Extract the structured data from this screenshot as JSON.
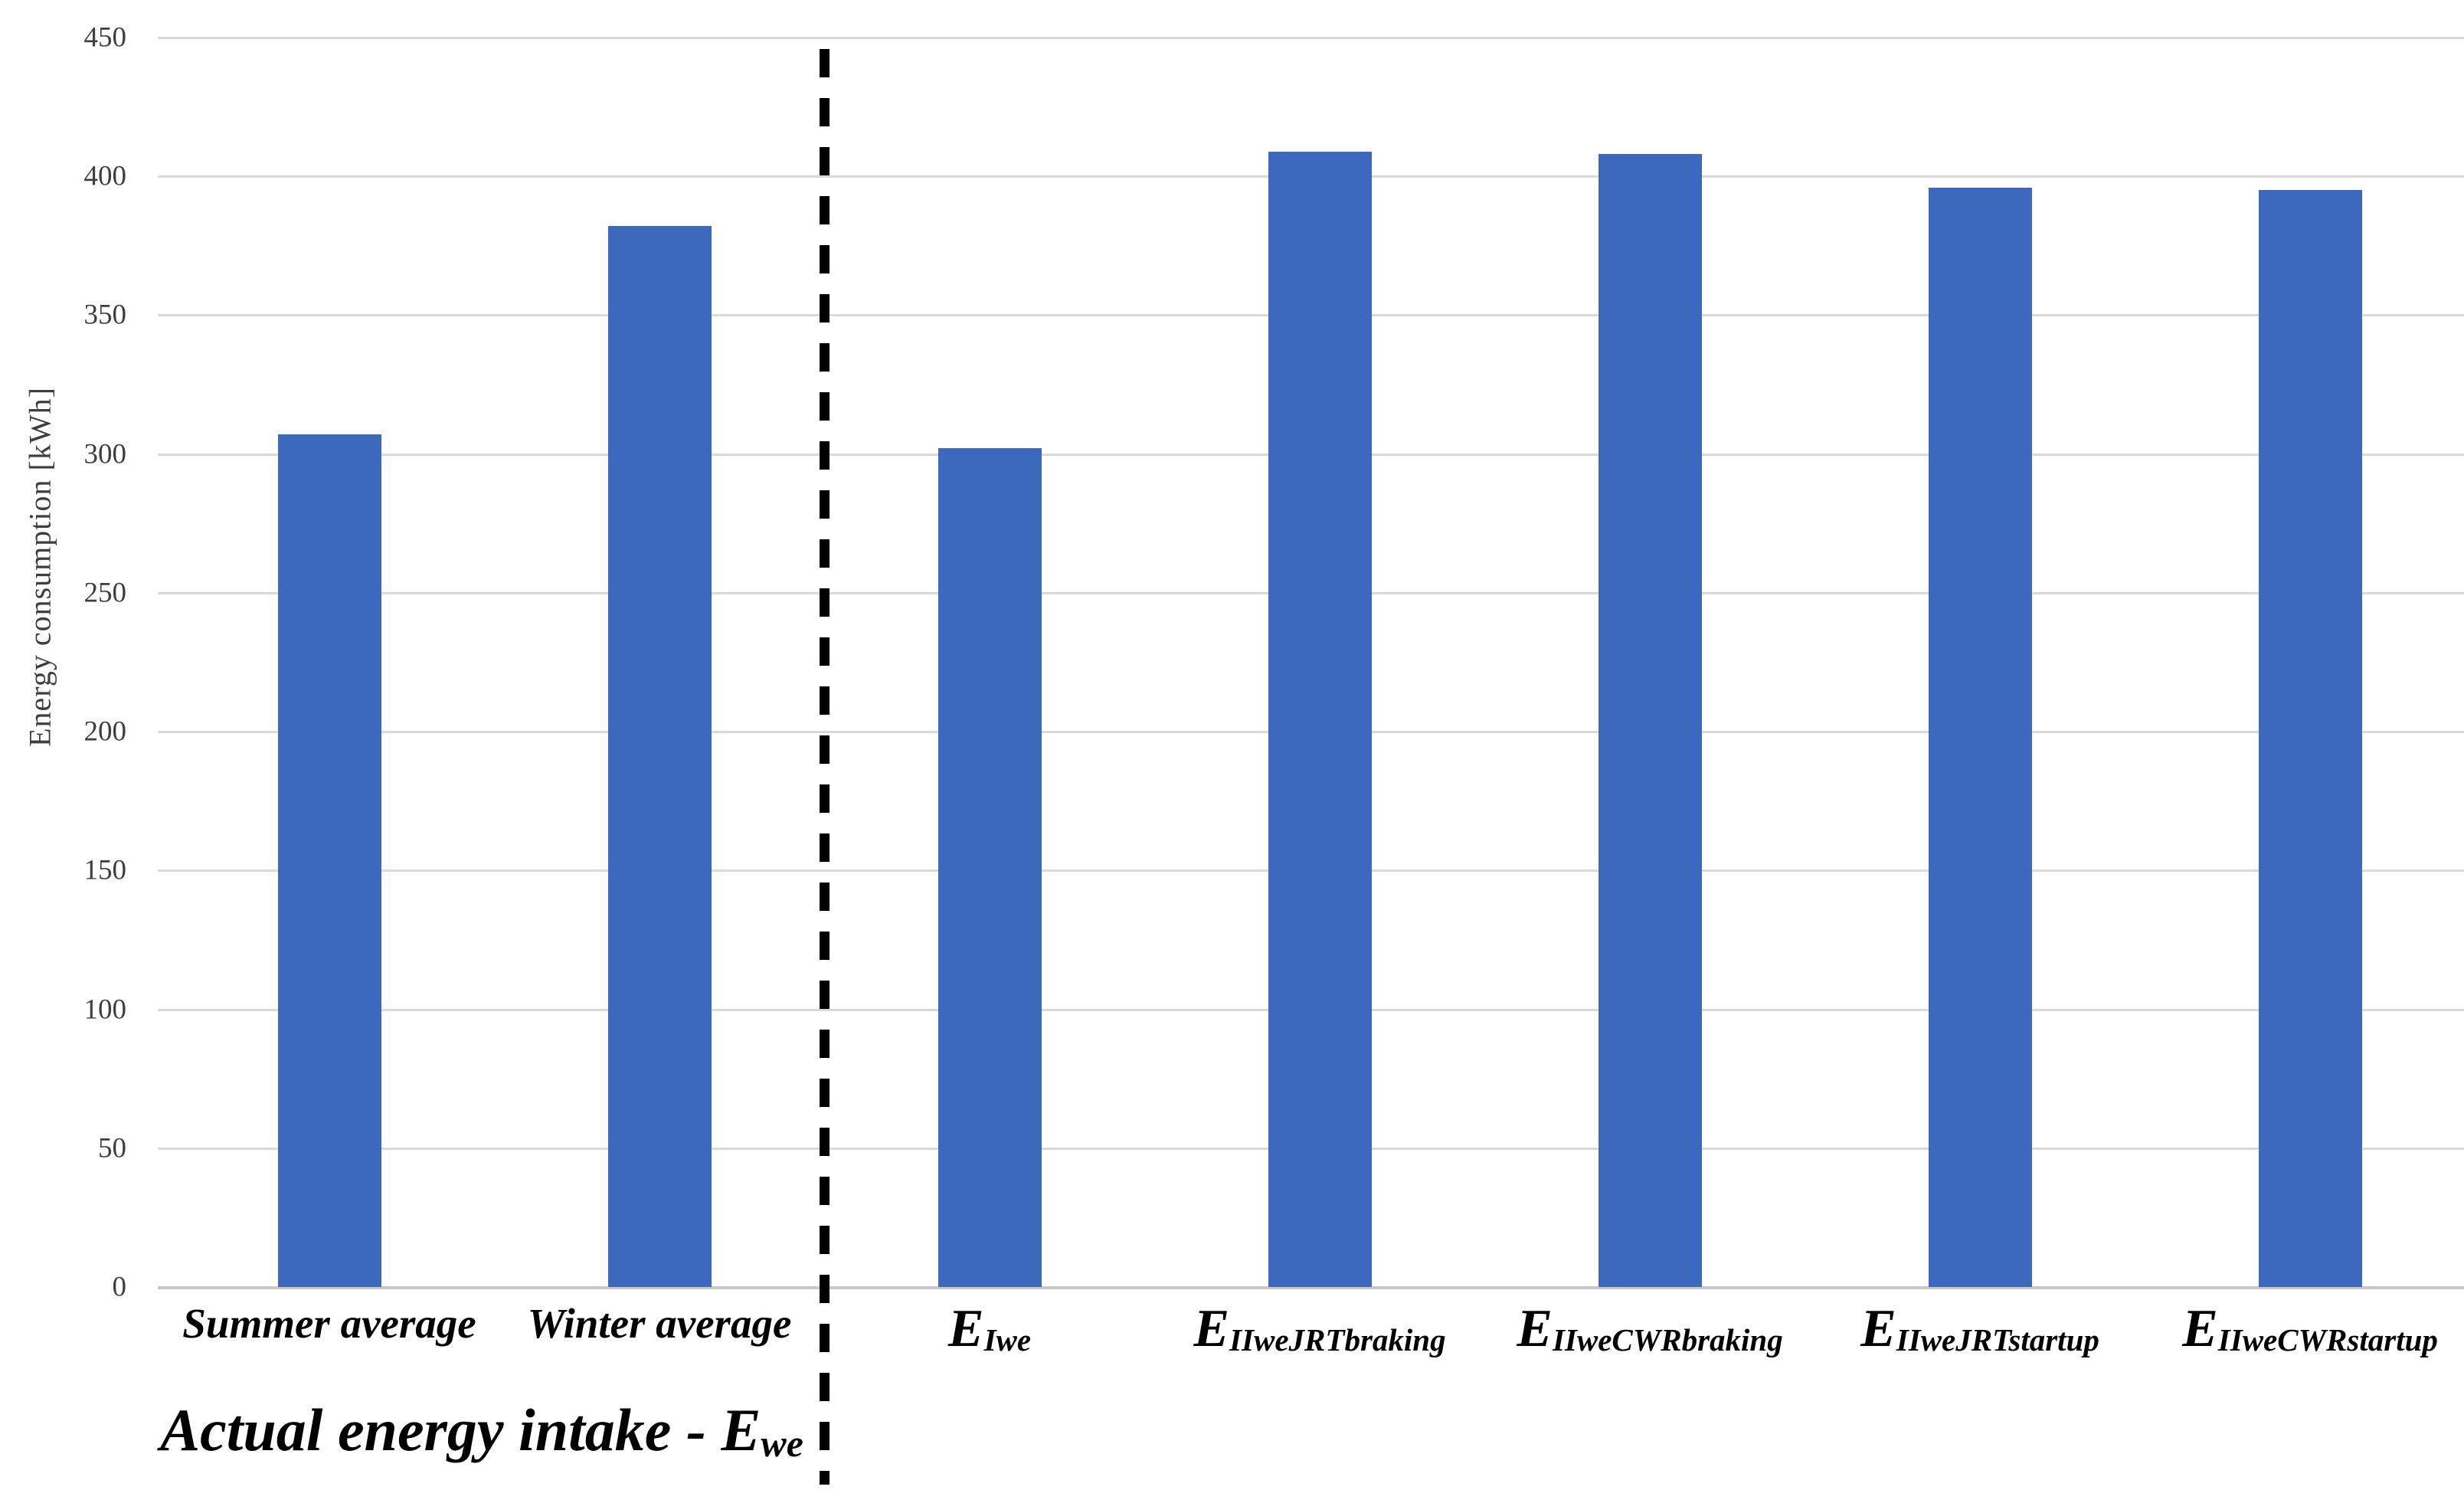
{
  "chart_data": {
    "type": "bar",
    "title": "",
    "xlabel": "",
    "ylabel": "Energy consumption [kWh]",
    "ylim": [
      0,
      450
    ],
    "ytick_step": 50,
    "yticks": [
      0,
      50,
      100,
      150,
      200,
      250,
      300,
      350,
      400,
      450
    ],
    "grid": true,
    "legend": false,
    "categories": [
      {
        "base": "Summer average",
        "sub": ""
      },
      {
        "base": "Winter average",
        "sub": ""
      },
      {
        "base": "E",
        "sub": "Iwe"
      },
      {
        "base": "E",
        "sub": "IIweJRTbraking"
      },
      {
        "base": "E",
        "sub": "IIweCWRbraking"
      },
      {
        "base": "E",
        "sub": "IIweJRTstartup"
      },
      {
        "base": "E",
        "sub": "IIweCWRstartup"
      }
    ],
    "values": [
      307,
      382,
      302,
      409,
      408,
      396,
      395
    ],
    "group_annotation": {
      "main": "Actual energy intake - E",
      "sub": "we",
      "applies_to": [
        "Summer average",
        "Winter average"
      ]
    },
    "separator": {
      "style": "dashed",
      "after_category_index": 1,
      "color": "#000000"
    }
  },
  "colors": {
    "bar": "#3c69be",
    "gridline": "#dadada",
    "axis_line": "#c8c8c8",
    "tick_text": "#3e3e3e",
    "label_text": "#000000",
    "background": "#ffffff"
  }
}
